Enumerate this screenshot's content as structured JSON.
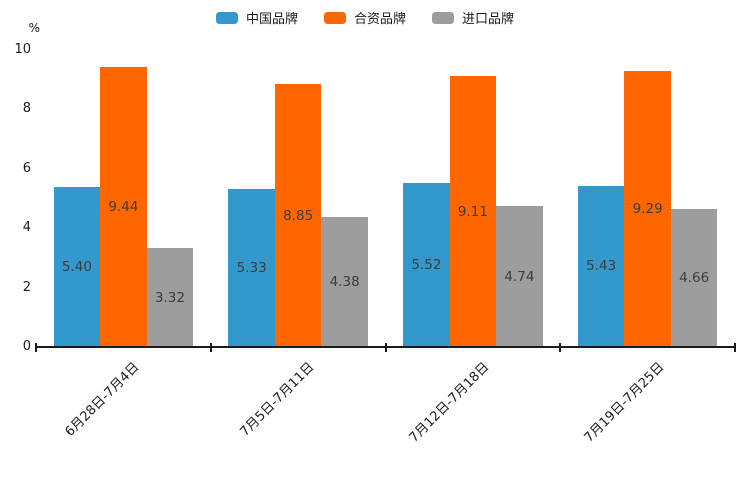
{
  "colors": {
    "china_brand": "#3398cc",
    "joint_venture_brand": "#ff6600",
    "import_brand": "#9d9d9d",
    "axis": "#1a1a1a",
    "value_label": "#3d3d3d"
  },
  "legend": {
    "items": [
      {
        "label": "中国品牌",
        "color": "#3398cc"
      },
      {
        "label": "合资品牌",
        "color": "#ff6600"
      },
      {
        "label": "进口品牌",
        "color": "#9d9d9d"
      }
    ]
  },
  "chart_data": {
    "type": "bar",
    "title": "",
    "ylabel": "%",
    "xlabel": "",
    "ylim": [
      0,
      10
    ],
    "yticks": [
      0,
      2,
      4,
      6,
      8,
      10
    ],
    "grid": false,
    "legend_position": "top-center",
    "value_label_format": "0.00",
    "categories": [
      "6月28日-7月4日",
      "7月5日-7月11日",
      "7月12日-7月18日",
      "7月19日-7月25日"
    ],
    "series": [
      {
        "name": "中国品牌",
        "color": "#3398cc",
        "values": [
          5.4,
          5.33,
          5.52,
          5.43
        ]
      },
      {
        "name": "合资品牌",
        "color": "#ff6600",
        "values": [
          9.44,
          8.85,
          9.11,
          9.29
        ]
      },
      {
        "name": "进口品牌",
        "color": "#9d9d9d",
        "values": [
          3.32,
          4.38,
          4.74,
          4.66
        ]
      }
    ]
  }
}
